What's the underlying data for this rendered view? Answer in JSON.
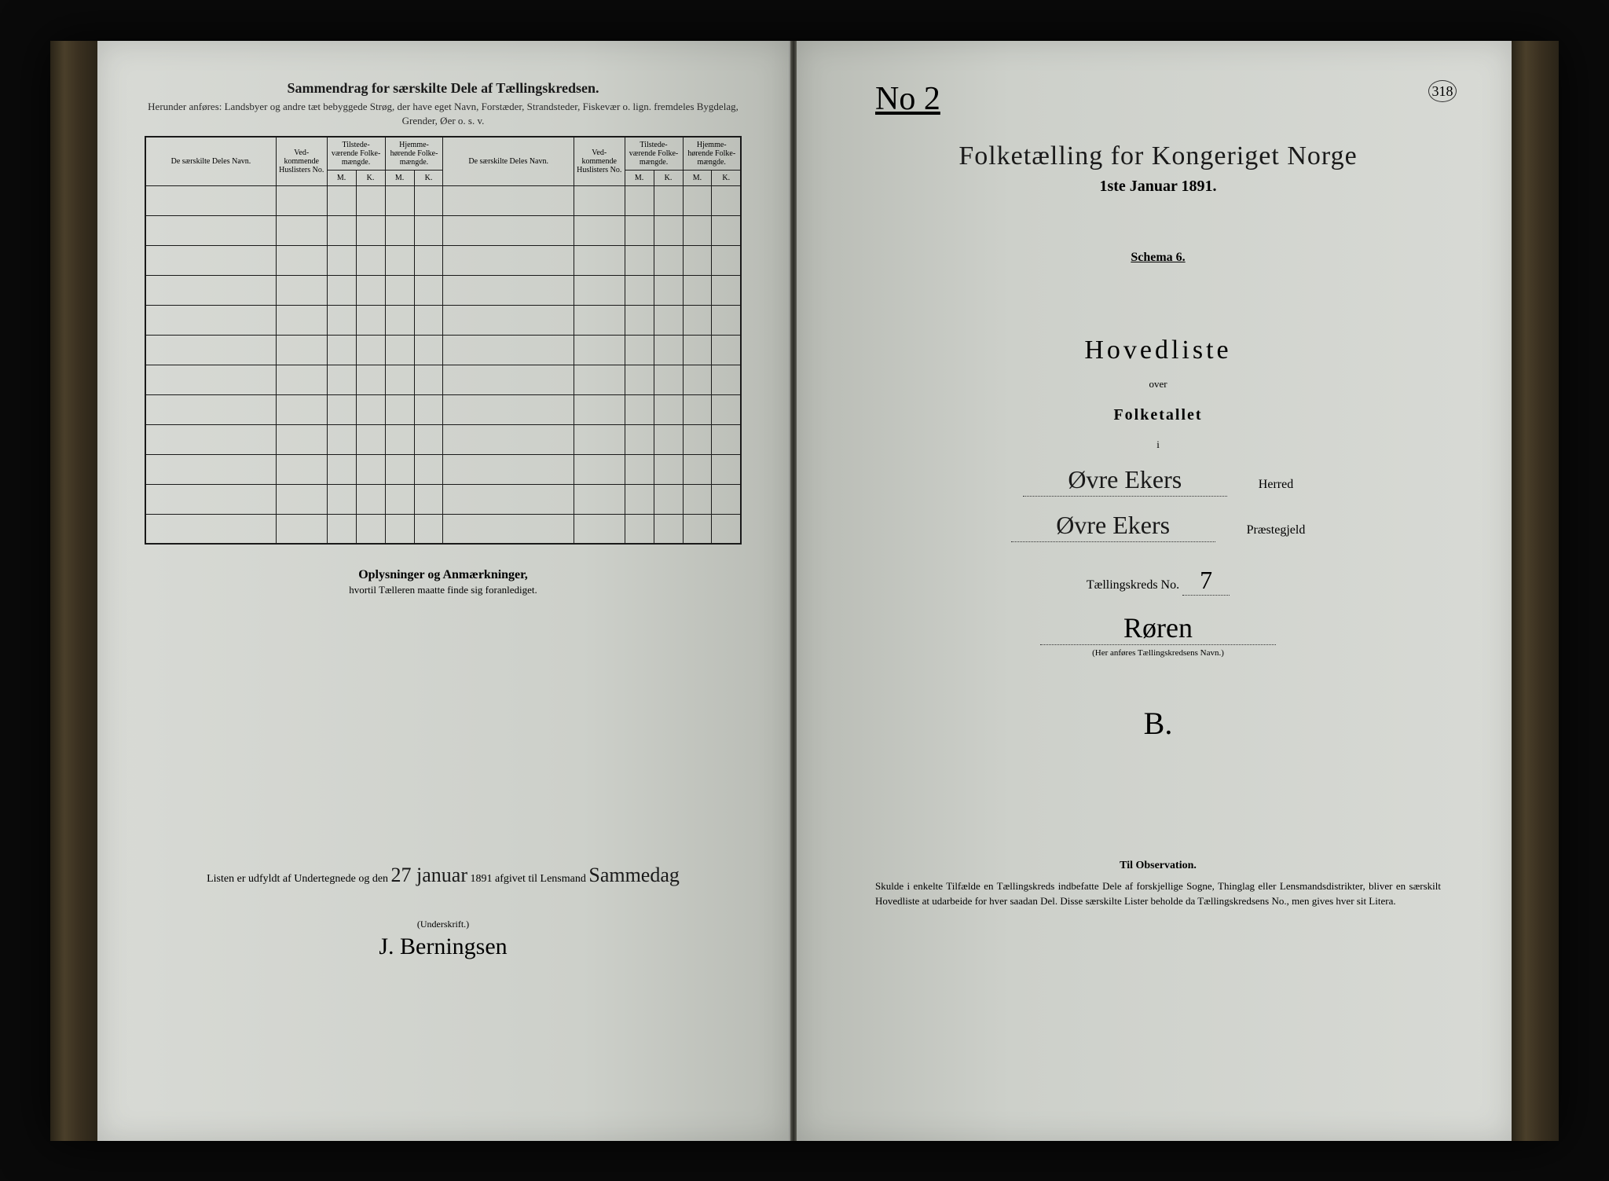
{
  "colors": {
    "page_bg": "#cdd0ca",
    "ink": "#1a1a1a",
    "book_bg": "#0a0a0a"
  },
  "left": {
    "title": "Sammendrag for særskilte Dele af Tællingskredsen.",
    "subtitle": "Herunder anføres: Landsbyer og andre tæt bebyggede Strøg, der have eget Navn, Forstæder, Strandsteder, Fiskevær o. lign. fremdeles Bygdelag, Grender, Øer o. s. v.",
    "table_headers": {
      "navn": "De særskilte Deles Navn.",
      "huslister": "Ved-kommende Huslisters No.",
      "tilstede": "Tilstede-værende Folke-mængde.",
      "hjemme": "Hjemme-hørende Folke-mængde.",
      "m": "M.",
      "k": "K."
    },
    "row_count": 12,
    "oplysninger_title": "Oplysninger og Anmærkninger,",
    "oplysninger_sub": "hvortil Tælleren maatte finde sig foranlediget.",
    "listen_text_1": "Listen er udfyldt af Undertegnede og den",
    "listen_date": "27 januar",
    "listen_text_2": "1891 afgivet til Lensmand",
    "listen_hand": "Sammedag",
    "underskrift_label": "(Underskrift.)",
    "signature": "J. Berningsen"
  },
  "right": {
    "top_marking": "No 2",
    "page_number": "318",
    "census_title": "Folketælling for Kongeriget Norge",
    "census_date": "1ste Januar 1891.",
    "schema": "Schema 6.",
    "hovedliste": "Hovedliste",
    "over": "over",
    "folketallet": "Folketallet",
    "i": "i",
    "herred_value": "Øvre Ekers",
    "herred_label": "Herred",
    "praestegjeld_value": "Øvre Ekers",
    "praestegjeld_label": "Præstegjeld",
    "taellingskreds_label": "Tællingskreds No.",
    "taellingskreds_no": "7",
    "kreds_name": "Røren",
    "kreds_note": "(Her anføres Tællingskredsens Navn.)",
    "litera": "B.",
    "obs_title": "Til Observation.",
    "obs_text": "Skulde i enkelte Tilfælde en Tællingskreds indbefatte Dele af forskjellige Sogne, Thinglag eller Lensmandsdistrikter, bliver en særskilt Hovedliste at udarbeide for hver saadan Del. Disse særskilte Lister beholde da Tællingskredsens No., men gives hver sit Litera."
  }
}
